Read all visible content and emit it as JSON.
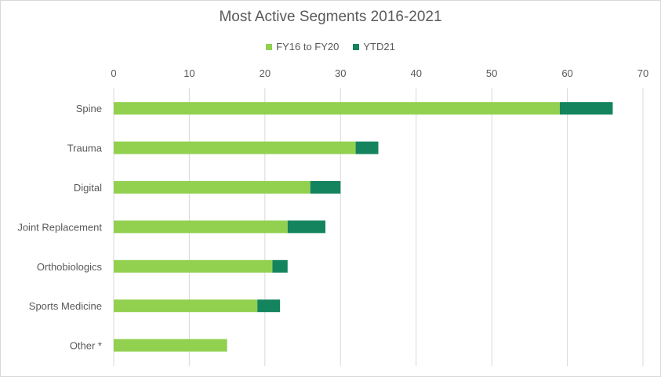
{
  "chart_data": {
    "type": "bar",
    "orientation": "horizontal",
    "stacked": true,
    "title": "Most Active Segments 2016-2021",
    "categories": [
      "Spine",
      "Trauma",
      "Digital",
      "Joint Replacement",
      "Orthobiologics",
      "Sports Medicine",
      "Other *"
    ],
    "series": [
      {
        "name": "FY16 to FY20",
        "color": "#92d050",
        "values": [
          59,
          32,
          26,
          23,
          21,
          19,
          15
        ]
      },
      {
        "name": "YTD21",
        "color": "#13845e",
        "values": [
          7,
          3,
          4,
          5,
          2,
          3,
          0
        ]
      }
    ],
    "xlim": [
      0,
      70
    ],
    "xticks": [
      0,
      10,
      20,
      30,
      40,
      50,
      60,
      70
    ],
    "grid": true,
    "legend_position": "top"
  }
}
